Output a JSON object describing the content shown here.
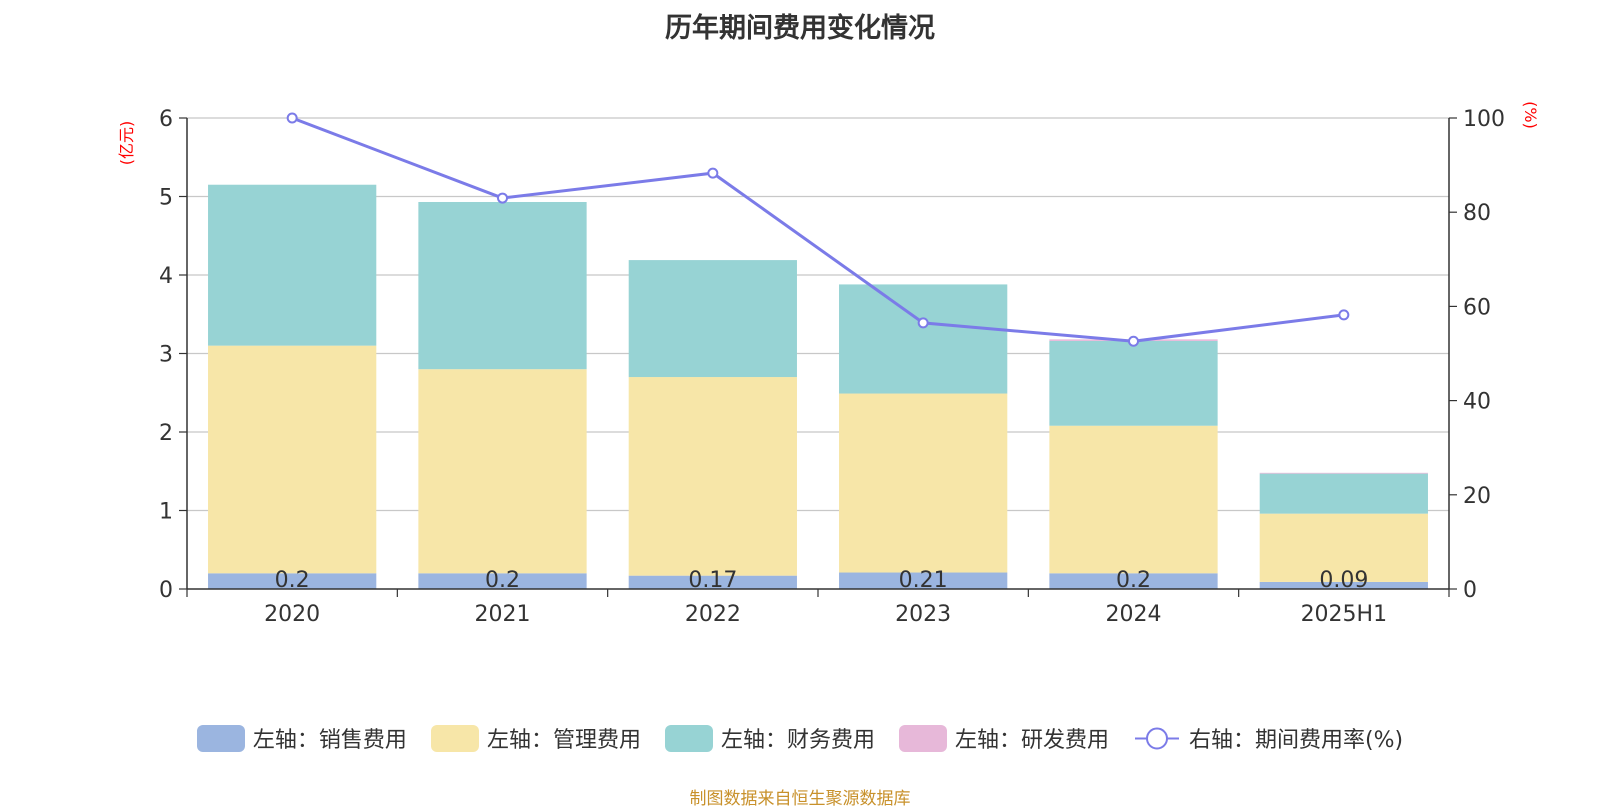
{
  "chart_data": {
    "type": "bar",
    "title": "历年期间费用变化情况",
    "categories": [
      "2020",
      "2021",
      "2022",
      "2023",
      "2024",
      "2025H1"
    ],
    "stacked": true,
    "left_axis": {
      "unit_label": "(亿元)",
      "ylim": [
        0,
        6
      ],
      "ticks": [
        "0",
        "1",
        "2",
        "3",
        "4",
        "5",
        "6"
      ]
    },
    "right_axis": {
      "unit_label": "(%)",
      "ylim": [
        0,
        100
      ],
      "ticks": [
        "0",
        "20",
        "40",
        "60",
        "80",
        "100"
      ]
    },
    "series": [
      {
        "name": "左轴：销售费用",
        "axis": "left",
        "kind": "bar",
        "color": "#9bb5e0",
        "values": [
          0.2,
          0.2,
          0.17,
          0.21,
          0.2,
          0.09
        ],
        "labels": [
          "0.2",
          "0.2",
          "0.17",
          "0.21",
          "0.2",
          "0.09"
        ]
      },
      {
        "name": "左轴：管理费用",
        "axis": "left",
        "kind": "bar",
        "color": "#f7e6a8",
        "values": [
          2.9,
          2.6,
          2.53,
          2.28,
          1.88,
          0.87
        ]
      },
      {
        "name": "左轴：财务费用",
        "axis": "left",
        "kind": "bar",
        "color": "#97d3d4",
        "values": [
          2.05,
          2.13,
          1.49,
          1.39,
          1.08,
          0.51
        ]
      },
      {
        "name": "左轴：研发费用",
        "axis": "left",
        "kind": "bar",
        "color": "#e7b8d9",
        "values": [
          0,
          0,
          0,
          0,
          0.02,
          0.01
        ]
      },
      {
        "name": "右轴：期间费用率(%)",
        "axis": "right",
        "kind": "line",
        "color": "#7b7be8",
        "values": [
          100,
          83,
          88.3,
          56.5,
          52.6,
          58.2
        ]
      }
    ],
    "grid": true,
    "legend_position": "bottom"
  },
  "source_note": "制图数据来自恒生聚源数据库"
}
